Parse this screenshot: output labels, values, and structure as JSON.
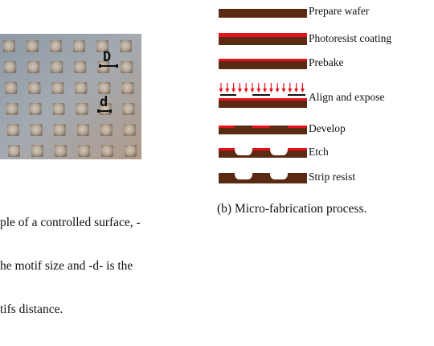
{
  "panel_a": {
    "photo_labels": {
      "D": "D",
      "d": "d"
    },
    "caption_lines": [
      "ple of a controlled surface, -",
      "he motif size and -d- is the",
      "tifs distance."
    ]
  },
  "panel_b": {
    "steps": [
      {
        "label": "Prepare wafer"
      },
      {
        "label": "Photoresist coating"
      },
      {
        "label": "Prebake"
      },
      {
        "label": "Align and expose"
      },
      {
        "label": "Develop"
      },
      {
        "label": "Etch"
      },
      {
        "label": "Strip resist"
      }
    ],
    "caption": "(b) Micro-fabrication process."
  },
  "colors": {
    "wafer": "#5a2a12",
    "resist": "#e8101a",
    "arrow": "#e8101a",
    "mask": "#111111"
  }
}
